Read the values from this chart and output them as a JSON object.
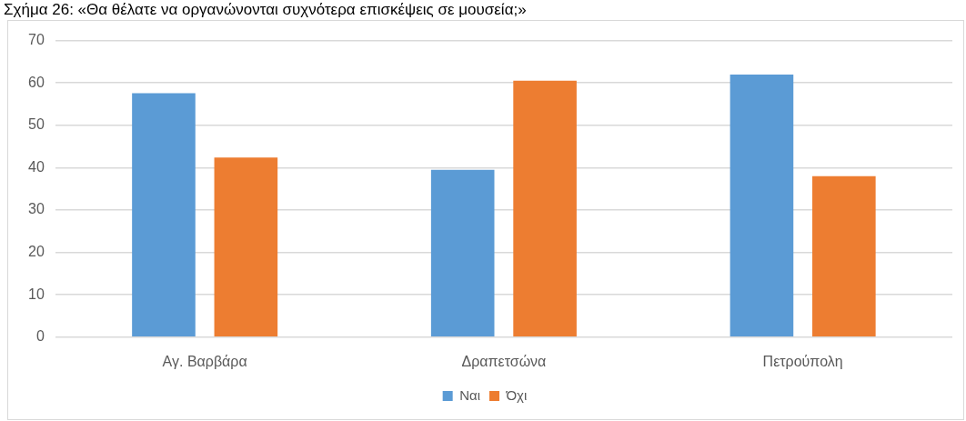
{
  "chart_data": {
    "type": "bar",
    "title": "Σχήμα 26: «Θα θέλατε να οργανώνονται συχνότερα επισκέψεις σε μουσεία;»",
    "categories": [
      "Αγ. Βαρβάρα",
      "Δραπετσώνα",
      "Πετρούπολη"
    ],
    "series": [
      {
        "name": "Ναι",
        "color": "#5b9bd5",
        "values": [
          57.6,
          39.5,
          62
        ]
      },
      {
        "name": "Όχι",
        "color": "#ed7d31",
        "values": [
          42.4,
          60.5,
          38
        ]
      }
    ],
    "ylim": [
      0,
      70
    ],
    "yticks": [
      0,
      10,
      20,
      30,
      40,
      50,
      60,
      70
    ],
    "grid": "y",
    "legend": "bottom"
  }
}
